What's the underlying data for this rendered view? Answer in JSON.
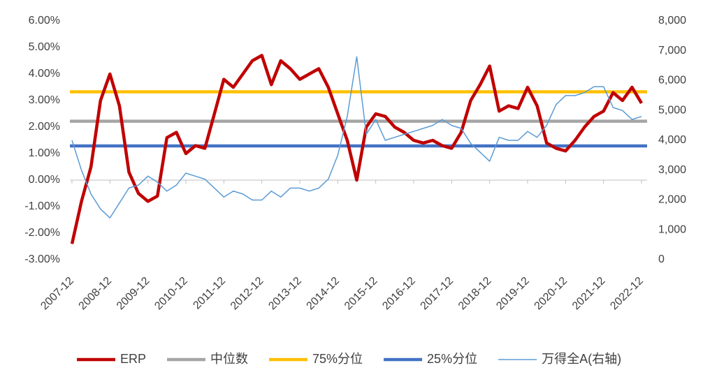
{
  "chart_data": {
    "type": "line",
    "x": [
      "2007-12",
      "2008-03",
      "2008-06",
      "2008-09",
      "2008-12",
      "2009-03",
      "2009-06",
      "2009-09",
      "2009-12",
      "2010-03",
      "2010-06",
      "2010-09",
      "2010-12",
      "2011-03",
      "2011-06",
      "2011-09",
      "2011-12",
      "2012-03",
      "2012-06",
      "2012-09",
      "2012-12",
      "2013-03",
      "2013-06",
      "2013-09",
      "2013-12",
      "2014-03",
      "2014-06",
      "2014-09",
      "2014-12",
      "2015-03",
      "2015-06",
      "2015-09",
      "2015-12",
      "2016-03",
      "2016-06",
      "2016-09",
      "2016-12",
      "2017-03",
      "2017-06",
      "2017-09",
      "2017-12",
      "2018-03",
      "2018-06",
      "2018-09",
      "2018-12",
      "2019-03",
      "2019-06",
      "2019-09",
      "2019-12",
      "2020-03",
      "2020-06",
      "2020-09",
      "2020-12",
      "2021-03",
      "2021-06",
      "2021-09",
      "2021-12",
      "2022-03",
      "2022-06",
      "2022-09",
      "2022-12"
    ],
    "xticks": [
      "2007-12",
      "2008-12",
      "2009-12",
      "2010-12",
      "2011-12",
      "2012-12",
      "2013-12",
      "2014-12",
      "2015-12",
      "2016-12",
      "2017-12",
      "2018-12",
      "2019-12",
      "2020-12",
      "2021-12",
      "2022-12"
    ],
    "series": [
      {
        "name": "ERP",
        "color": "#c00000",
        "values": [
          -2.4,
          -0.8,
          0.5,
          3.0,
          4.0,
          2.8,
          0.3,
          -0.5,
          -0.8,
          -0.6,
          1.6,
          1.8,
          1.0,
          1.3,
          1.2,
          2.5,
          3.8,
          3.5,
          4.0,
          4.5,
          4.7,
          3.6,
          4.5,
          4.2,
          3.8,
          4.0,
          4.2,
          3.5,
          2.5,
          1.5,
          0.0,
          2.0,
          2.5,
          2.4,
          2.0,
          1.8,
          1.5,
          1.4,
          1.5,
          1.3,
          1.2,
          1.8,
          3.0,
          3.6,
          4.3,
          2.6,
          2.8,
          2.7,
          3.5,
          2.8,
          1.4,
          1.2,
          1.1,
          1.5,
          2.0,
          2.4,
          2.6,
          3.3,
          3.0,
          3.5,
          2.9
        ]
      },
      {
        "name": "中位数",
        "color": "#a5a5a5",
        "value": 2.22
      },
      {
        "name": "75%分位",
        "color": "#ffc000",
        "value": 3.33
      },
      {
        "name": "25%分位",
        "color": "#4472c4",
        "value": 1.29
      },
      {
        "name": "万得全A(右轴)",
        "color": "#5b9bd5",
        "axis": "y2",
        "values": [
          4000,
          3000,
          2200,
          1700,
          1400,
          1900,
          2400,
          2500,
          2800,
          2600,
          2300,
          2500,
          2900,
          2800,
          2700,
          2400,
          2100,
          2300,
          2200,
          2000,
          2000,
          2300,
          2100,
          2400,
          2400,
          2300,
          2400,
          2700,
          3500,
          4800,
          6800,
          4200,
          4700,
          4000,
          4100,
          4200,
          4300,
          4400,
          4500,
          4700,
          4500,
          4400,
          3900,
          3600,
          3300,
          4100,
          4000,
          4000,
          4300,
          4100,
          4500,
          5200,
          5500,
          5500,
          5600,
          5800,
          5800,
          5100,
          5000,
          4700,
          4800
        ]
      }
    ],
    "ylim": [
      -3,
      6
    ],
    "yticks": [
      {
        "value": -3,
        "label": "-3.00%"
      },
      {
        "value": -2,
        "label": "-2.00%"
      },
      {
        "value": -1,
        "label": "-1.00%"
      },
      {
        "value": 0,
        "label": "0.00%"
      },
      {
        "value": 1,
        "label": "1.00%"
      },
      {
        "value": 2,
        "label": "2.00%"
      },
      {
        "value": 3,
        "label": "3.00%"
      },
      {
        "value": 4,
        "label": "4.00%"
      },
      {
        "value": 5,
        "label": "5.00%"
      },
      {
        "value": 6,
        "label": "6.00%"
      }
    ],
    "y2lim": [
      0,
      8000
    ],
    "y2ticks": [
      0,
      {
        "value": 1000,
        "label": "1,000"
      },
      {
        "value": 2000,
        "label": "2,000"
      },
      {
        "value": 3000,
        "label": "3,000"
      },
      {
        "value": 4000,
        "label": "4,000"
      },
      {
        "value": 5000,
        "label": "5,000"
      },
      {
        "value": 6000,
        "label": "6,000"
      },
      {
        "value": 7000,
        "label": "7,000"
      },
      {
        "value": 8000,
        "label": "8,000"
      }
    ],
    "grid": false,
    "legend": "bottom"
  }
}
